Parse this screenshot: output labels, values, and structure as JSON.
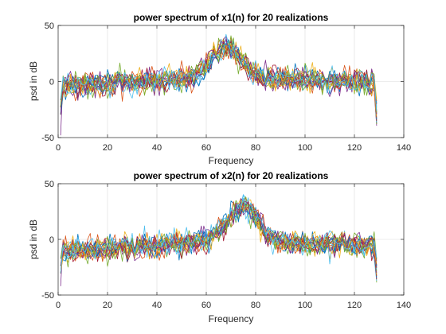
{
  "chart_data": [
    {
      "type": "line",
      "title": "power spectrum of x1(n) for 20 realizations",
      "xlabel": "Frequency",
      "ylabel": "psd in dB",
      "xlim": [
        0,
        140
      ],
      "ylim": [
        -50,
        50
      ],
      "xticks": [
        0,
        20,
        40,
        60,
        80,
        100,
        120,
        140
      ],
      "yticks": [
        -50,
        0,
        50
      ],
      "grid": true,
      "legend": "none",
      "n_realizations": 20,
      "x_range": [
        1,
        129
      ],
      "peak": {
        "x": 68,
        "y": 32
      },
      "baseline_mean_db": [
        -3,
        5
      ],
      "min_value": {
        "x": 1,
        "y": -48
      }
    },
    {
      "type": "line",
      "title": "power spectrum of x2(n) for 20 realizations",
      "xlabel": "Frequency",
      "ylabel": "psd in dB",
      "xlim": [
        0,
        140
      ],
      "ylim": [
        -50,
        50
      ],
      "xticks": [
        0,
        20,
        40,
        60,
        80,
        100,
        120,
        140
      ],
      "yticks": [
        -50,
        0,
        50
      ],
      "grid": true,
      "legend": "none",
      "n_realizations": 20,
      "x_range": [
        1,
        129
      ],
      "peak": {
        "x": 75,
        "y": 34
      },
      "baseline_mean_db": [
        -8,
        2
      ],
      "min_value": {
        "x": 1,
        "y": -42
      }
    }
  ],
  "colors": [
    "#0072BD",
    "#D95319",
    "#EDB120",
    "#7E2F8E",
    "#77AC30",
    "#4DBEEE",
    "#A2142F"
  ]
}
